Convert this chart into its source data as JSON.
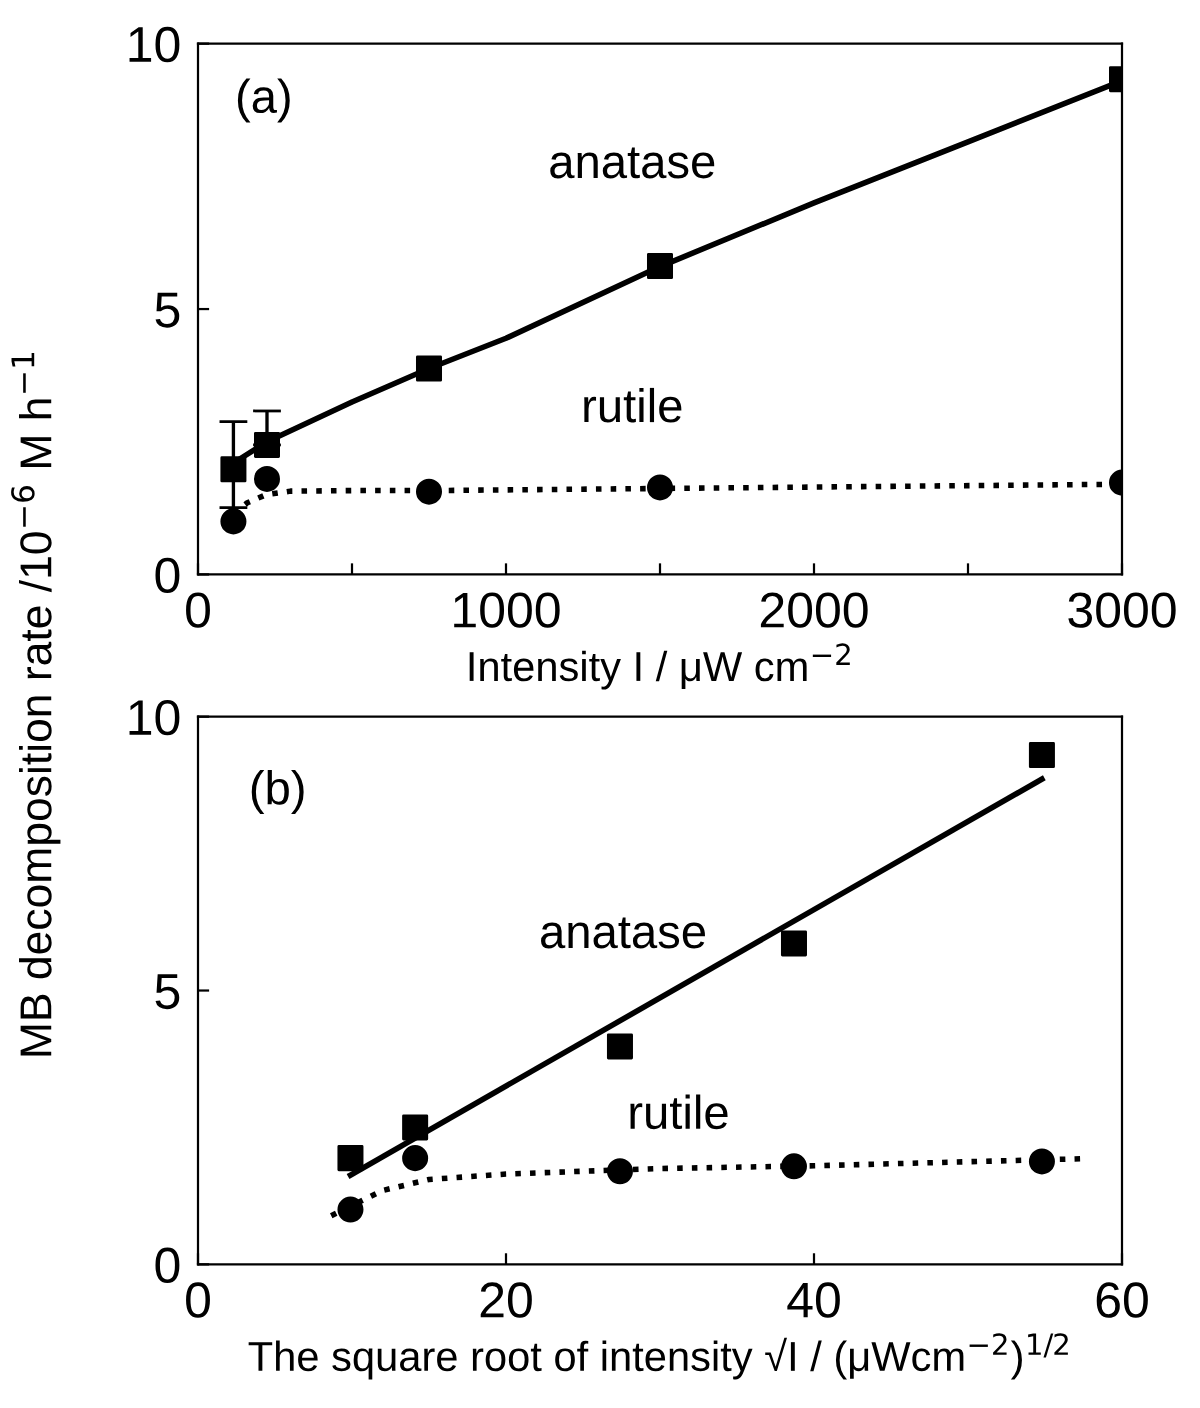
{
  "chart_data": [
    {
      "type": "scatter",
      "xlabel": "Intensity I / μW cm$^{−2}$",
      "ylabel": "MB decomposition rate /10$^{−6}$ M h$^{−1}$",
      "annotations": [
        "(a)"
      ],
      "xlim": [
        0,
        3000
      ],
      "xticks": [
        0,
        {
          "value": 500,
          "label": null
        },
        1000,
        {
          "value": 1500,
          "label": null
        },
        2000,
        {
          "value": 2500,
          "label": null
        },
        3000
      ],
      "ylim": [
        0,
        10
      ],
      "yticks": [
        0,
        5,
        10
      ],
      "grid": false,
      "legend": false,
      "series": [
        {
          "name": "anatase",
          "marker": "square",
          "color": "#000000",
          "x": [
            115,
            224,
            750,
            1500,
            3000
          ],
          "values": [
            1.98,
            2.44,
            3.88,
            5.81,
            9.33
          ],
          "errors": [
            [
              1.26,
              2.88
            ],
            [
              2.44,
              3.08
            ],
            null,
            null,
            null
          ]
        },
        {
          "type": "line",
          "line_style": "solid",
          "color": "#000000",
          "x": [
            115,
            224,
            500,
            750,
            1000,
            1500,
            2000,
            2500,
            3000
          ],
          "values": [
            2.1,
            2.5,
            3.25,
            3.88,
            4.45,
            5.8,
            7.0,
            8.15,
            9.3
          ]
        },
        {
          "name": "rutile",
          "marker": "circle",
          "color": "#000000",
          "x": [
            115,
            224,
            750,
            1500,
            3000
          ],
          "values": [
            1.0,
            1.8,
            1.56,
            1.64,
            1.73
          ]
        },
        {
          "type": "line",
          "line_style": "dotted",
          "color": "#000000",
          "x": [
            115,
            160,
            220,
            300,
            500,
            750,
            1500,
            3000
          ],
          "values": [
            1.15,
            1.35,
            1.5,
            1.57,
            1.58,
            1.58,
            1.62,
            1.7
          ]
        }
      ]
    },
    {
      "type": "scatter",
      "xlabel": "The square root of intensity √I / (μWcm$^{−2}$)$^{1/2}$",
      "annotations": [
        "(b)"
      ],
      "xlim": [
        0,
        60
      ],
      "xticks": [
        0,
        20,
        40,
        60
      ],
      "ylim": [
        0,
        10
      ],
      "yticks": [
        0,
        5,
        10
      ],
      "grid": false,
      "legend": false,
      "series": [
        {
          "name": "anatase",
          "marker": "square",
          "color": "#000000",
          "x": [
            9.9,
            14.1,
            27.4,
            38.7,
            54.8
          ],
          "values": [
            1.94,
            2.5,
            3.98,
            5.86,
            9.3
          ]
        },
        {
          "type": "line",
          "line_style": "solid",
          "color": "#000000",
          "x": [
            9.9,
            54.8
          ],
          "values": [
            1.63,
            8.86
          ]
        },
        {
          "name": "rutile",
          "marker": "circle",
          "color": "#000000",
          "x": [
            9.9,
            14.1,
            27.4,
            38.7,
            54.8
          ],
          "values": [
            1.0,
            1.94,
            1.7,
            1.79,
            1.88
          ]
        },
        {
          "type": "line",
          "line_style": "dotted",
          "color": "#000000",
          "x": [
            8.65,
            12,
            15,
            20,
            30,
            40,
            57.5
          ],
          "values": [
            0.89,
            1.35,
            1.55,
            1.65,
            1.75,
            1.8,
            1.93
          ]
        }
      ]
    }
  ]
}
